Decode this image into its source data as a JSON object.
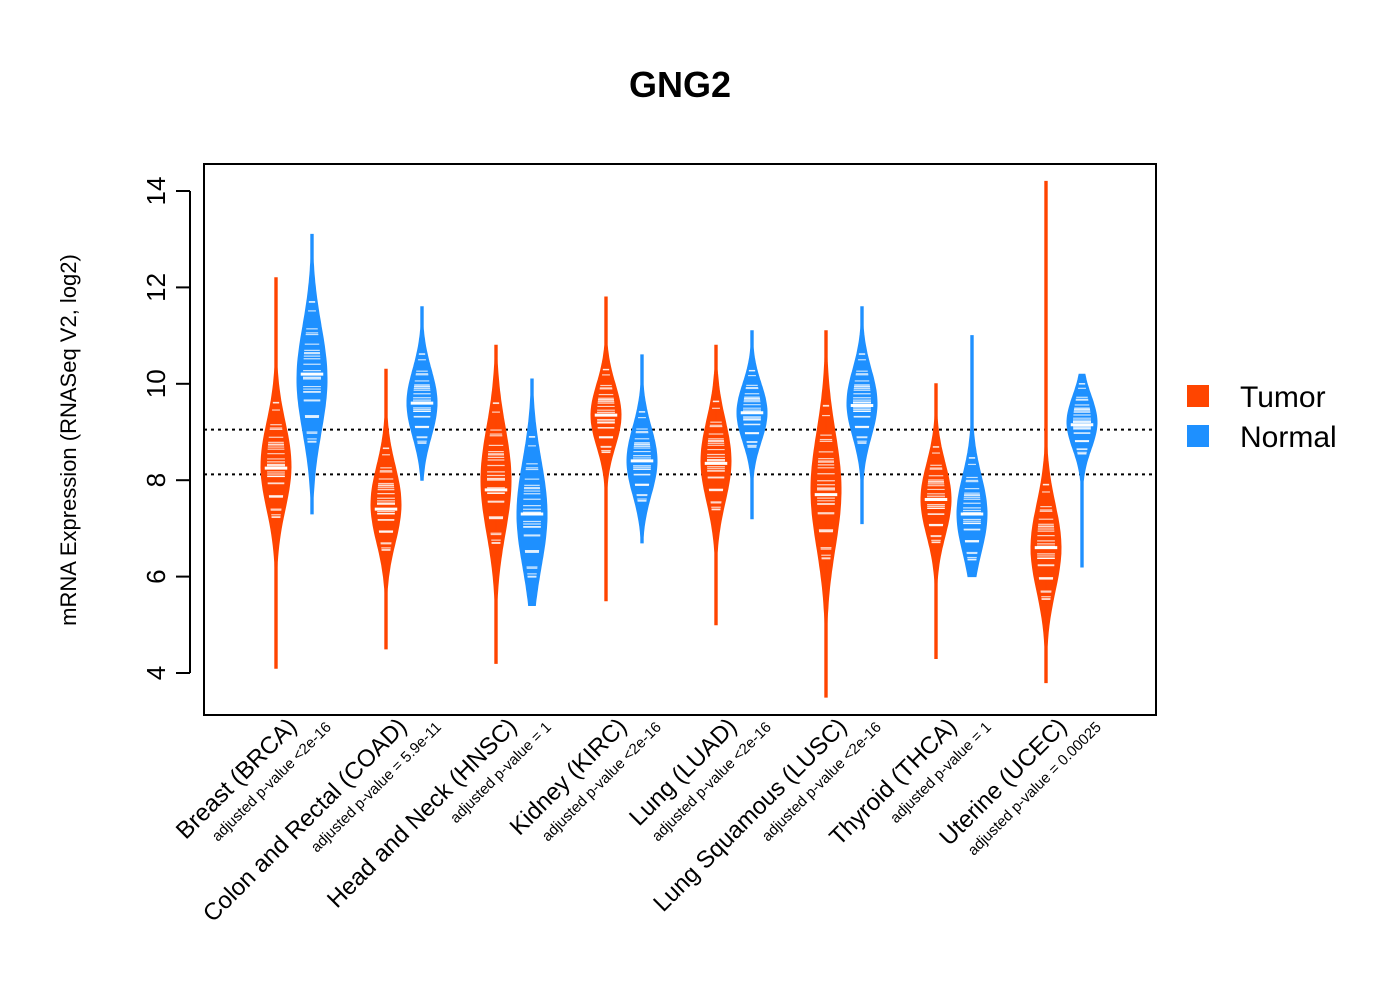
{
  "chart_data": {
    "type": "violin",
    "title": "GNG2",
    "ylabel": "mRNA Expression (RNASeq V2, log2)",
    "ylim": [
      3.2,
      14.6
    ],
    "yticks": [
      4,
      6,
      8,
      10,
      12,
      14
    ],
    "reference_lines": [
      9.05,
      8.12
    ],
    "legend": {
      "position": "right",
      "entries": [
        {
          "name": "Tumor",
          "color": "#FF4500"
        },
        {
          "name": "Normal",
          "color": "#1E90FF"
        }
      ]
    },
    "groups": [
      {
        "label": "Breast (BRCA)",
        "pvalue": "adjusted p-value <2e-16",
        "tumor": {
          "min": 4.1,
          "max": 12.2,
          "median": 8.25,
          "peak": 8.3,
          "spread": 0.9
        },
        "normal": {
          "min": 7.3,
          "max": 13.1,
          "median": 10.2,
          "peak": 10.1,
          "spread": 1.1
        }
      },
      {
        "label": "Colon and Rectal (COAD)",
        "pvalue": "adjusted p-value = 5.9e-11",
        "tumor": {
          "min": 4.5,
          "max": 10.3,
          "median": 7.4,
          "peak": 7.5,
          "spread": 0.8
        },
        "normal": {
          "min": 8.0,
          "max": 11.6,
          "median": 9.6,
          "peak": 9.6,
          "spread": 0.7
        }
      },
      {
        "label": "Head and Neck (HNSC)",
        "pvalue": "adjusted p-value = 1",
        "tumor": {
          "min": 4.2,
          "max": 10.8,
          "median": 7.8,
          "peak": 8.0,
          "spread": 1.1
        },
        "normal": {
          "min": 5.4,
          "max": 10.1,
          "median": 7.3,
          "peak": 7.3,
          "spread": 1.1
        }
      },
      {
        "label": "Kidney (KIRC)",
        "pvalue": "adjusted p-value <2e-16",
        "tumor": {
          "min": 5.5,
          "max": 11.8,
          "median": 9.35,
          "peak": 9.35,
          "spread": 0.65
        },
        "normal": {
          "min": 6.7,
          "max": 10.6,
          "median": 8.4,
          "peak": 8.4,
          "spread": 0.7
        }
      },
      {
        "label": "Lung (LUAD)",
        "pvalue": "adjusted p-value <2e-16",
        "tumor": {
          "min": 5.0,
          "max": 10.8,
          "median": 8.35,
          "peak": 8.4,
          "spread": 0.85
        },
        "normal": {
          "min": 7.2,
          "max": 11.1,
          "median": 9.4,
          "peak": 9.4,
          "spread": 0.6
        }
      },
      {
        "label": "Lung Squamous (LUSC)",
        "pvalue": "adjusted p-value <2e-16",
        "tumor": {
          "min": 3.5,
          "max": 11.1,
          "median": 7.7,
          "peak": 7.8,
          "spread": 1.2
        },
        "normal": {
          "min": 7.1,
          "max": 11.6,
          "median": 9.55,
          "peak": 9.6,
          "spread": 0.7
        }
      },
      {
        "label": "Thyroid (THCA)",
        "pvalue": "adjusted p-value = 1",
        "tumor": {
          "min": 4.3,
          "max": 10.0,
          "median": 7.6,
          "peak": 7.6,
          "spread": 0.75
        },
        "normal": {
          "min": 6.0,
          "max": 11.0,
          "median": 7.3,
          "peak": 7.3,
          "spread": 0.8
        }
      },
      {
        "label": "Uterine (UCEC)",
        "pvalue": "adjusted p-value = 0.00025",
        "tumor": {
          "min": 3.8,
          "max": 14.2,
          "median": 6.6,
          "peak": 6.6,
          "spread": 0.9
        },
        "normal": {
          "min": 6.2,
          "max": 10.2,
          "median": 9.15,
          "peak": 9.2,
          "spread": 0.55
        }
      }
    ]
  }
}
